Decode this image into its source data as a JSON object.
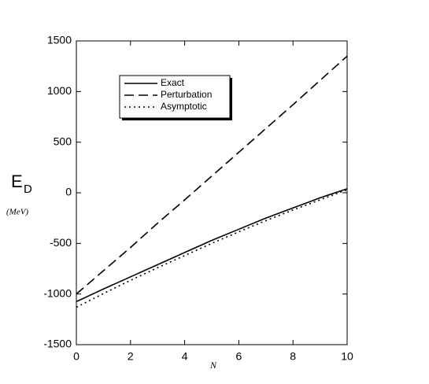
{
  "chart_data": {
    "type": "line",
    "x_label": "N",
    "y_label": "E",
    "y_label_subscript": "D",
    "y_unit": "(MeV)",
    "x": [
      0,
      1,
      2,
      3,
      4,
      5,
      6,
      7,
      8,
      9,
      10
    ],
    "series": [
      {
        "name": "Exact",
        "color": "#000000",
        "style": "solid",
        "values": [
          -1075,
          -950,
          -830,
          -710,
          -590,
          -470,
          -360,
          -250,
          -150,
          -50,
          40
        ]
      },
      {
        "name": "Perturbation",
        "color": "#000000",
        "style": "dashed",
        "values": [
          -1000,
          -770,
          -540,
          -300,
          -70,
          165,
          400,
          635,
          870,
          1110,
          1350
        ]
      },
      {
        "name": "Asymptotic",
        "color": "#000000",
        "style": "dotted",
        "values": [
          -1130,
          -995,
          -865,
          -740,
          -620,
          -500,
          -385,
          -275,
          -170,
          -70,
          30
        ]
      }
    ],
    "xlim": [
      0,
      10
    ],
    "xticks": [
      0,
      2,
      4,
      6,
      8,
      10
    ],
    "ylim": [
      -1500,
      1500
    ],
    "yticks": [
      -1500,
      -1000,
      -500,
      0,
      500,
      1000,
      1500
    ],
    "legend": "upper-left"
  }
}
